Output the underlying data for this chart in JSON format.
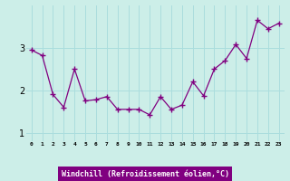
{
  "x": [
    0,
    1,
    2,
    3,
    4,
    5,
    6,
    7,
    8,
    9,
    10,
    11,
    12,
    13,
    14,
    15,
    16,
    17,
    18,
    19,
    20,
    21,
    22,
    23
  ],
  "y": [
    2.95,
    2.82,
    1.9,
    1.6,
    2.5,
    1.75,
    1.78,
    1.85,
    1.55,
    1.55,
    1.55,
    1.42,
    1.85,
    1.55,
    1.65,
    2.2,
    1.87,
    2.5,
    2.7,
    3.08,
    2.75,
    3.65,
    3.45,
    3.58
  ],
  "line_color": "#800080",
  "marker": "+",
  "bg_color": "#cceee8",
  "grid_color": "#aadddd",
  "xlabel": "Windchill (Refroidissement éolien,°C)",
  "xlabel_bg": "#800080",
  "xlabel_color": "#ffffff",
  "ylim": [
    0.8,
    4.0
  ],
  "yticks": [
    1,
    2,
    3
  ],
  "xlim": [
    -0.5,
    23.5
  ]
}
